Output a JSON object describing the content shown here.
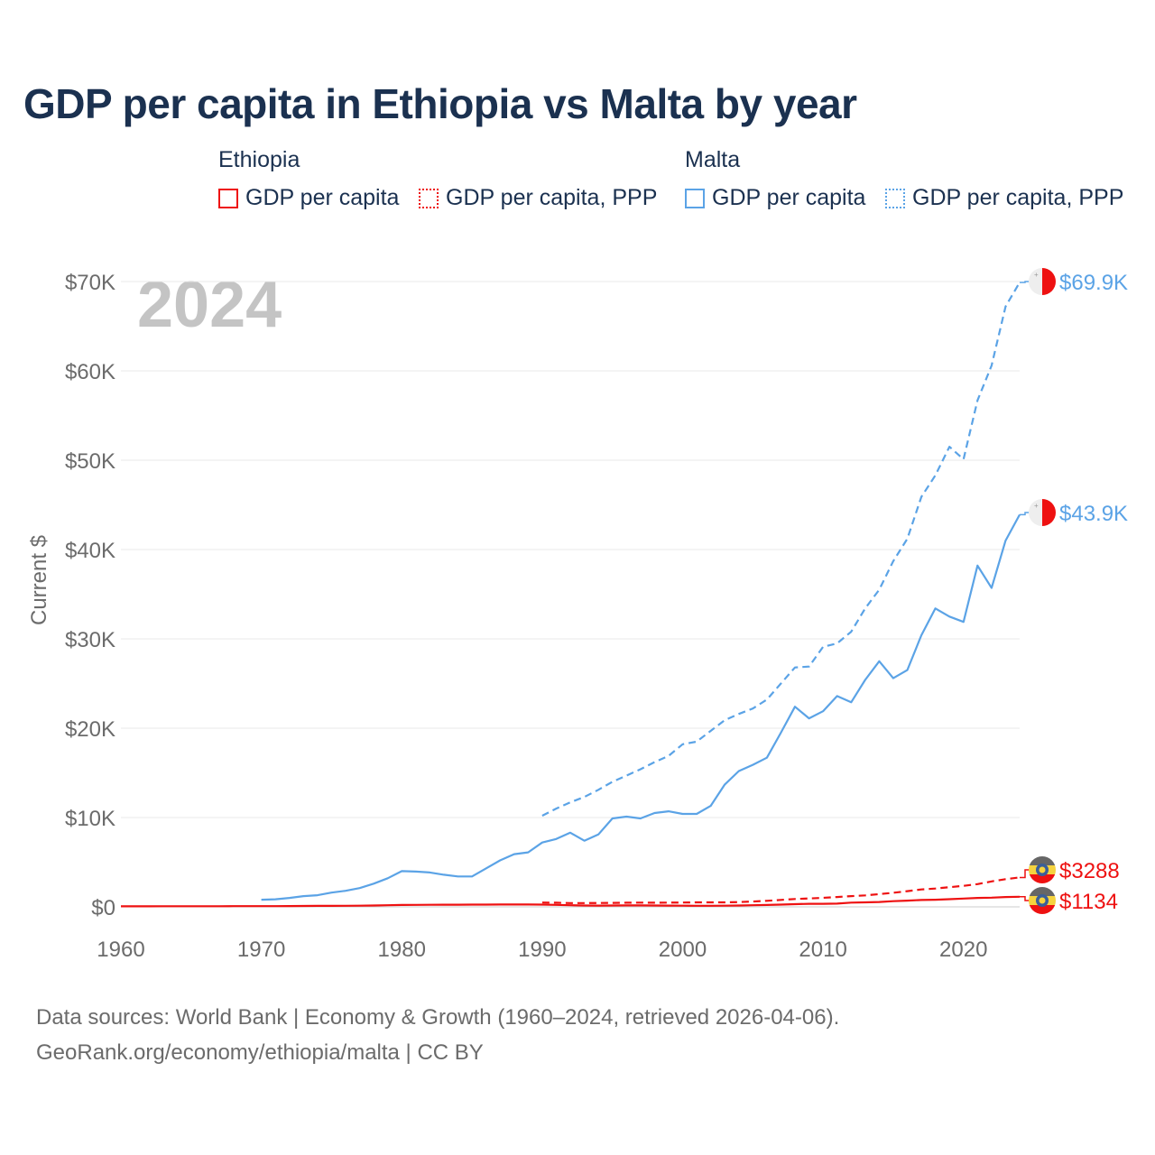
{
  "chart_data": {
    "type": "line",
    "title": "GDP per capita in Ethiopia vs Malta by year",
    "ylabel": "Current $",
    "xlabel": "",
    "xlim": [
      1960,
      2024
    ],
    "ylim": [
      0,
      70000
    ],
    "x_ticks": [
      "1960",
      "1970",
      "1980",
      "1990",
      "2000",
      "2010",
      "2020"
    ],
    "y_ticks": [
      "$0",
      "$10K",
      "$20K",
      "$30K",
      "$40K",
      "$50K",
      "$60K",
      "$70K"
    ],
    "year_watermark": "2024",
    "grid": true,
    "legend": {
      "placement": "top",
      "groups": [
        {
          "name": "Ethiopia",
          "items": [
            "GDP per capita",
            "GDP per capita, PPP"
          ]
        },
        {
          "name": "Malta",
          "items": [
            "GDP per capita",
            "GDP per capita, PPP"
          ]
        }
      ]
    },
    "colors": {
      "Ethiopia": "#ee1111",
      "Malta": "#5ba3e6"
    },
    "series": [
      {
        "name": "Malta GDP per capita, PPP",
        "country": "Malta",
        "style": "dashed",
        "start": 1990,
        "end_label": "$69.9K",
        "values": [
          10200,
          11000,
          11700,
          12300,
          13100,
          14000,
          14700,
          15400,
          16200,
          16900,
          18200,
          18500,
          19700,
          20900,
          21600,
          22200,
          23200,
          25000,
          26800,
          26900,
          29100,
          29500,
          30800,
          33400,
          35500,
          38700,
          41200,
          45900,
          48300,
          51500,
          50100,
          56700,
          60600,
          67200,
          69900
        ]
      },
      {
        "name": "Malta GDP per capita",
        "country": "Malta",
        "style": "solid",
        "start": 1970,
        "end_label": "$43.9K",
        "values": [
          800,
          850,
          1000,
          1200,
          1300,
          1600,
          1800,
          2100,
          2600,
          3200,
          4000,
          3950,
          3850,
          3600,
          3400,
          3400,
          4300,
          5200,
          5900,
          6100,
          7200,
          7600,
          8300,
          7400,
          8100,
          9900,
          10100,
          9900,
          10500,
          10700,
          10400,
          10400,
          11300,
          13700,
          15200,
          15900,
          16700,
          19500,
          22400,
          21100,
          21900,
          23600,
          22900,
          25400,
          27500,
          25600,
          26500,
          30400,
          33400,
          32500,
          31900,
          38200,
          35700,
          41000,
          43900
        ]
      },
      {
        "name": "Ethiopia GDP per capita, PPP",
        "country": "Ethiopia",
        "style": "dashed",
        "start": 1990,
        "end_label": "$3288",
        "values": [
          480,
          460,
          420,
          420,
          430,
          440,
          460,
          470,
          460,
          470,
          480,
          500,
          500,
          500,
          540,
          600,
          680,
          780,
          880,
          940,
          1010,
          1100,
          1200,
          1280,
          1420,
          1580,
          1760,
          1950,
          2050,
          2200,
          2350,
          2550,
          2850,
          3100,
          3288
        ]
      },
      {
        "name": "Ethiopia GDP per capita",
        "country": "Ethiopia",
        "style": "solid",
        "start": 1960,
        "end_label": "$1134",
        "values": [
          60,
          62,
          64,
          66,
          68,
          70,
          72,
          74,
          76,
          78,
          80,
          85,
          90,
          100,
          110,
          115,
          120,
          130,
          150,
          180,
          210,
          220,
          230,
          240,
          240,
          250,
          250,
          260,
          260,
          260,
          250,
          220,
          180,
          150,
          140,
          150,
          160,
          160,
          150,
          140,
          130,
          120,
          120,
          130,
          150,
          180,
          210,
          250,
          300,
          340,
          340,
          360,
          470,
          500,
          550,
          640,
          700,
          770,
          800,
          860,
          930,
          1000,
          1030,
          1100,
          1134
        ]
      }
    ]
  },
  "footer": {
    "line1": "Data sources: World Bank | Economy & Growth (1960–2024, retrieved 2026-04-06).",
    "line2": "GeoRank.org/economy/ethiopia/malta | CC BY"
  }
}
